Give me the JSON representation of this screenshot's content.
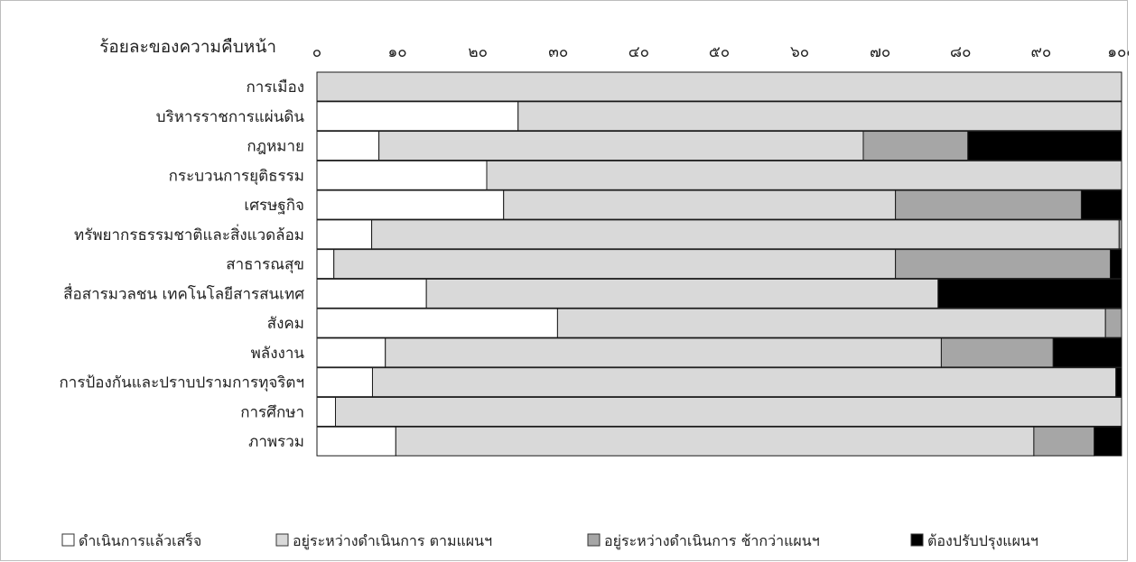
{
  "chart_data": {
    "type": "bar",
    "orientation": "horizontal",
    "stacked": true,
    "title": "ร้อยละของความคืบหน้า",
    "xlabel": "",
    "ylabel": "",
    "xlim": [
      0,
      100
    ],
    "x_ticks": [
      0,
      10,
      20,
      30,
      40,
      50,
      60,
      70,
      80,
      90,
      100
    ],
    "x_tick_labels": [
      "๐",
      "๑๐",
      "๒๐",
      "๓๐",
      "๔๐",
      "๕๐",
      "๖๐",
      "๗๐",
      "๘๐",
      "๙๐",
      "๑๐๐"
    ],
    "x_axis_position": "top",
    "grid": false,
    "legend_position": "bottom",
    "categories": [
      "การเมือง",
      "บริหารราชการแผ่นดิน",
      "กฎหมาย",
      "กระบวนการยุติธรรม",
      "เศรษฐกิจ",
      "ทรัพยากรธรรมชาติและสิ่งแวดล้อม",
      "สาธารณสุข",
      "สื่อสารมวลชน เทคโนโลยีสารสนเทศ",
      "สังคม",
      "พลังงาน",
      "การป้องกันและปราบปรามการทุจริตฯ",
      "การศึกษา",
      "ภาพรวม"
    ],
    "series": [
      {
        "name": "ดำเนินการแล้วเสร็จ",
        "color": "#ffffff",
        "values": [
          0,
          25,
          7.7,
          21.1,
          23.2,
          6.8,
          2.1,
          13.6,
          29.9,
          8.5,
          6.9,
          2.3,
          9.8
        ]
      },
      {
        "name": "อยู่ระหว่างดำเนินการ ตามแผนฯ",
        "color": "#d9d9d9",
        "values": [
          100,
          75,
          60.2,
          78.9,
          48.7,
          92.9,
          69.8,
          63.6,
          68.1,
          69.1,
          92.4,
          97.7,
          79.3
        ]
      },
      {
        "name": "อยู่ระหว่างดำเนินการ ช้ากว่าแผนฯ",
        "color": "#a6a6a6",
        "values": [
          0,
          0,
          13.0,
          0,
          23.1,
          0.3,
          26.7,
          0,
          2.0,
          13.9,
          0,
          0,
          7.5
        ]
      },
      {
        "name": "ต้องปรับปรุงแผนฯ",
        "color": "#000000",
        "values": [
          0,
          0,
          19.1,
          0,
          5.0,
          0,
          1.4,
          22.8,
          0,
          8.5,
          0.7,
          0,
          3.4
        ]
      }
    ]
  }
}
